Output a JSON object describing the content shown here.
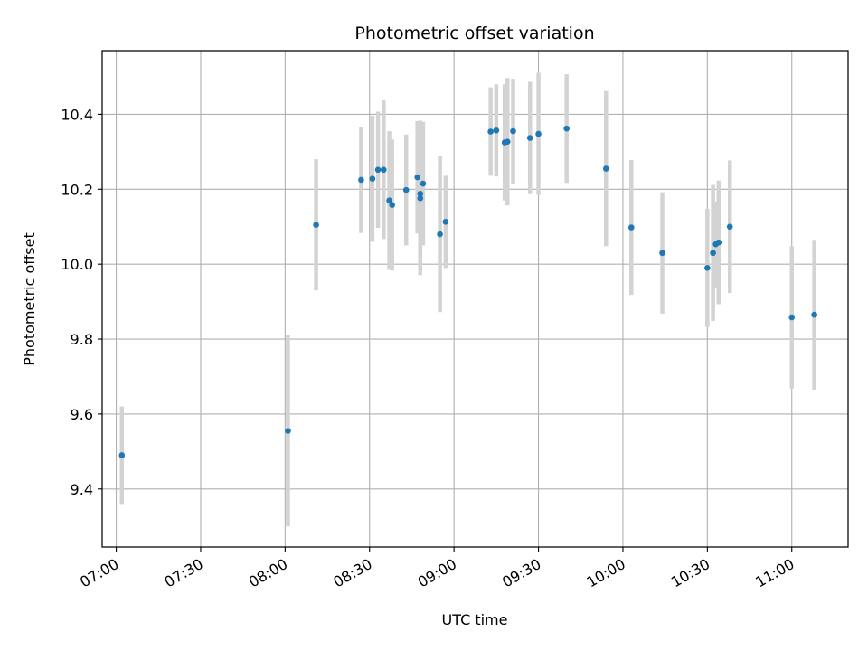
{
  "chart_data": {
    "type": "scatter",
    "title": "Photometric offset variation",
    "xlabel": "UTC time",
    "ylabel": "Photometric offset",
    "x_ticks": [
      "07:00",
      "07:30",
      "08:00",
      "08:30",
      "09:00",
      "09:30",
      "10:00",
      "10:30",
      "11:00"
    ],
    "y_ticks": [
      "9.4",
      "9.6",
      "9.8",
      "10.0",
      "10.2",
      "10.4"
    ],
    "xlim": [
      "06:55",
      "11:20"
    ],
    "ylim": [
      9.245,
      10.57
    ],
    "grid": true,
    "colors": {
      "point": "#1f77b4",
      "errorbar": "#d3d3d3",
      "grid": "#b0b0b0"
    },
    "points": [
      {
        "x": "07:02",
        "y": 9.49,
        "err": 0.13
      },
      {
        "x": "08:01",
        "y": 9.555,
        "err": 0.255
      },
      {
        "x": "08:11",
        "y": 10.105,
        "err": 0.175
      },
      {
        "x": "08:27",
        "y": 10.225,
        "err": 0.142
      },
      {
        "x": "08:31",
        "y": 10.228,
        "err": 0.168
      },
      {
        "x": "08:33",
        "y": 10.252,
        "err": 0.155
      },
      {
        "x": "08:35",
        "y": 10.252,
        "err": 0.185
      },
      {
        "x": "08:37",
        "y": 10.17,
        "err": 0.185
      },
      {
        "x": "08:38",
        "y": 10.158,
        "err": 0.175
      },
      {
        "x": "08:43",
        "y": 10.198,
        "err": 0.148
      },
      {
        "x": "08:47",
        "y": 10.232,
        "err": 0.15
      },
      {
        "x": "08:48",
        "y": 10.188,
        "err": 0.195
      },
      {
        "x": "08:48",
        "y": 10.176,
        "err": 0.205
      },
      {
        "x": "08:49",
        "y": 10.215,
        "err": 0.165
      },
      {
        "x": "08:55",
        "y": 10.08,
        "err": 0.208
      },
      {
        "x": "08:57",
        "y": 10.113,
        "err": 0.123
      },
      {
        "x": "09:13",
        "y": 10.354,
        "err": 0.118
      },
      {
        "x": "09:15",
        "y": 10.357,
        "err": 0.123
      },
      {
        "x": "09:18",
        "y": 10.325,
        "err": 0.155
      },
      {
        "x": "09:19",
        "y": 10.327,
        "err": 0.17
      },
      {
        "x": "09:21",
        "y": 10.355,
        "err": 0.14
      },
      {
        "x": "09:27",
        "y": 10.337,
        "err": 0.15
      },
      {
        "x": "09:30",
        "y": 10.348,
        "err": 0.163
      },
      {
        "x": "09:40",
        "y": 10.362,
        "err": 0.145
      },
      {
        "x": "09:54",
        "y": 10.255,
        "err": 0.207
      },
      {
        "x": "10:03",
        "y": 10.098,
        "err": 0.18
      },
      {
        "x": "10:14",
        "y": 10.03,
        "err": 0.162
      },
      {
        "x": "10:30",
        "y": 9.99,
        "err": 0.158
      },
      {
        "x": "10:32",
        "y": 10.03,
        "err": 0.182
      },
      {
        "x": "10:33",
        "y": 10.053,
        "err": 0.115
      },
      {
        "x": "10:34",
        "y": 10.058,
        "err": 0.165
      },
      {
        "x": "10:38",
        "y": 10.1,
        "err": 0.177
      },
      {
        "x": "11:00",
        "y": 9.858,
        "err": 0.19
      },
      {
        "x": "11:08",
        "y": 9.865,
        "err": 0.2
      }
    ]
  }
}
